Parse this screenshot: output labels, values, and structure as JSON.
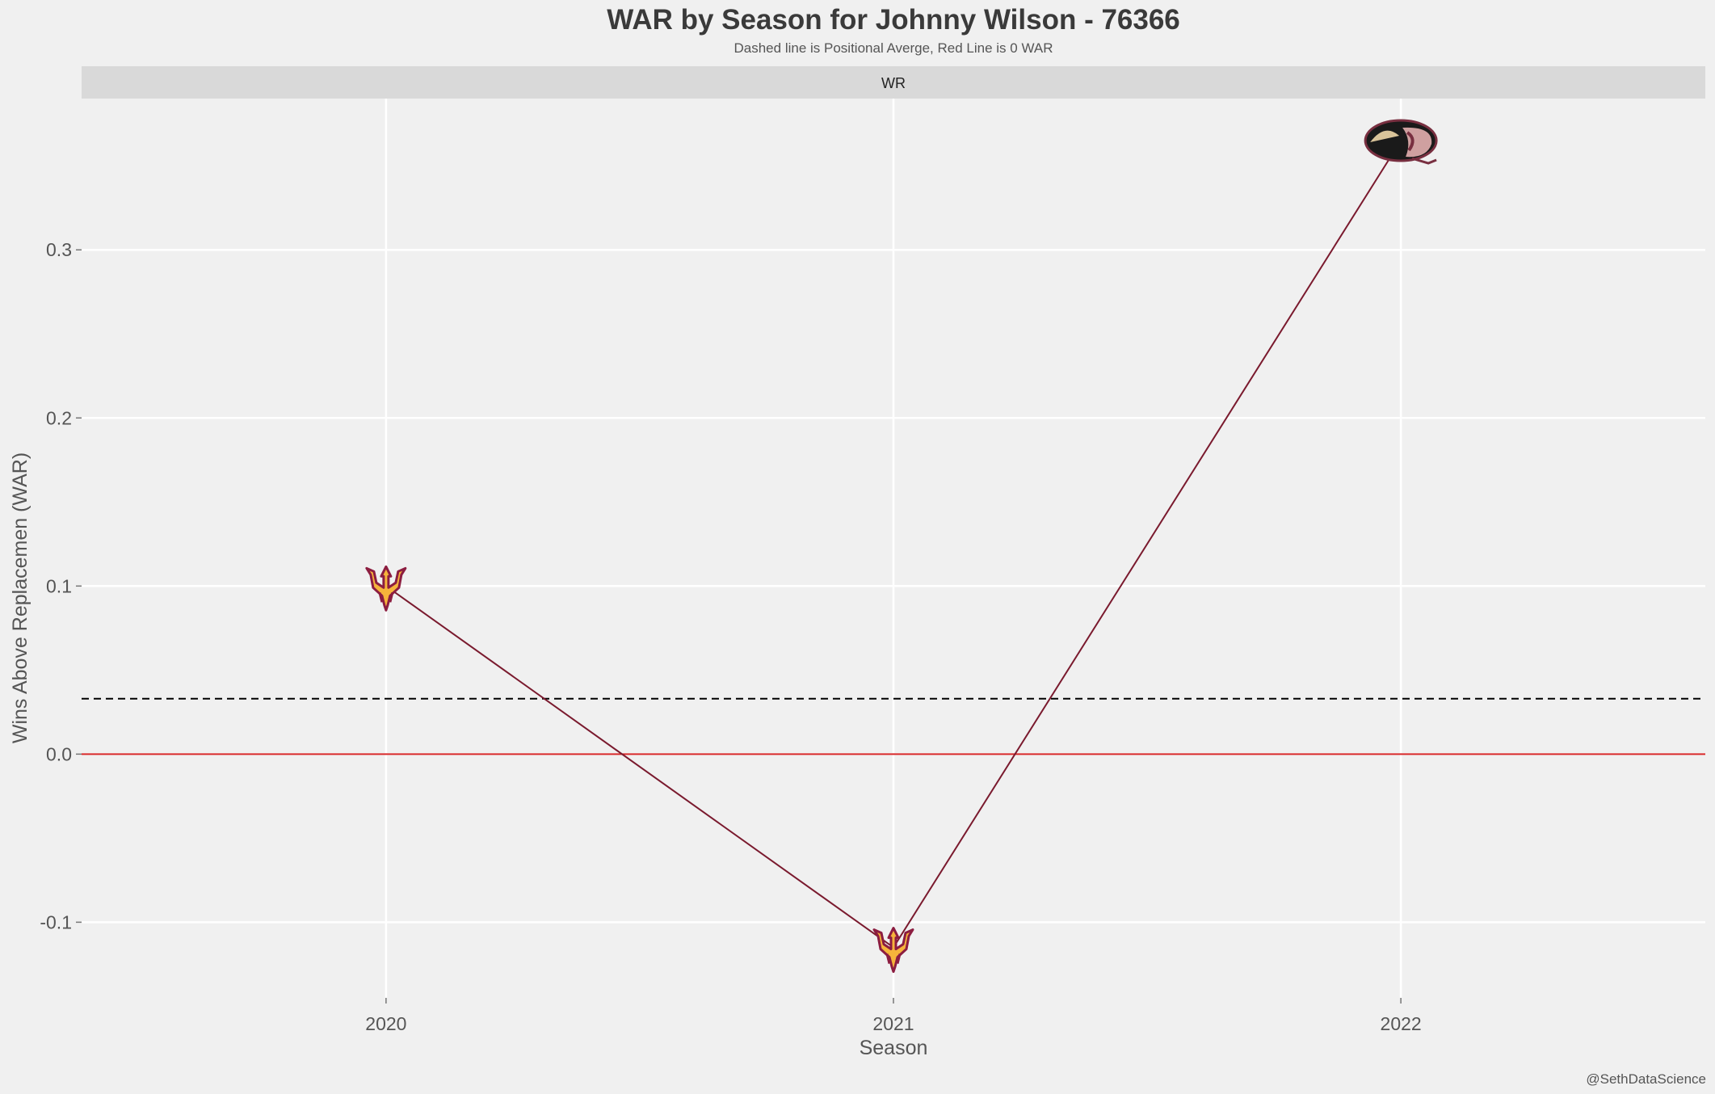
{
  "chart_data": {
    "type": "line",
    "title": "WAR by Season for Johnny Wilson - 76366",
    "subtitle": "Dashed line is Positional Averge, Red Line is 0 WAR",
    "facet_label": "WR",
    "xlabel": "Season",
    "ylabel": "Wins Above Replacemen (WAR)",
    "caption": "@SethDataScience",
    "categories": [
      "2020",
      "2021",
      "2022"
    ],
    "values": [
      0.1,
      -0.115,
      0.365
    ],
    "point_logos": [
      "pitchfork-logo",
      "pitchfork-logo",
      "seminole-logo"
    ],
    "yticks": [
      -0.1,
      0.0,
      0.1,
      0.2,
      0.3
    ],
    "ytick_labels": [
      "-0.1",
      "0.0",
      "0.1",
      "0.2",
      "0.3"
    ],
    "ylim": [
      -0.145,
      0.39
    ],
    "reference_lines": {
      "zero": 0.0,
      "positional_average": 0.033
    },
    "grid": true,
    "colors": {
      "background": "#f0f0f0",
      "strip": "#d9d9d9",
      "gridline": "#ffffff",
      "series_line": "#7a1a2e",
      "zero_line": "#d62728",
      "average_line": "#000000",
      "title_text": "#3a3a3a",
      "axis_text": "#555555"
    }
  }
}
